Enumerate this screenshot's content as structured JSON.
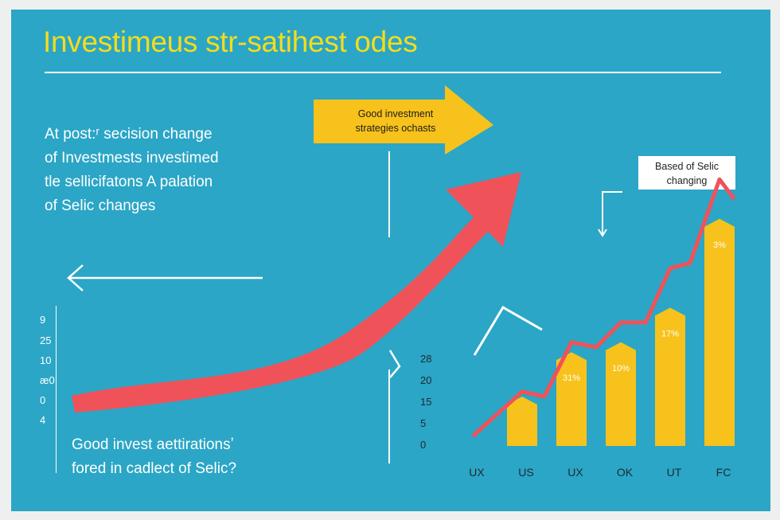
{
  "title": "Investimeus str-satihest odes",
  "intro_lines": [
    "At post:ʳ secision change",
    "of Investmests investimed",
    "tle sellicifatons A palation",
    "of Selic changes"
  ],
  "banner": {
    "line1": "Good investment",
    "line2": "strategies ochasts"
  },
  "callout": {
    "line1": "Based of Selic",
    "line2": "changing"
  },
  "left_axis_ticks": [
    "9",
    "25",
    "10",
    "æ0",
    "0",
    "4"
  ],
  "bottom_note": {
    "line1": "Good invest aettirationsʼ",
    "line2": "fored in cadlect of Selic?"
  },
  "colors": {
    "background": "#2ba6c6",
    "title": "#f4dc1c",
    "bar": "#f7c21b",
    "trend_line": "#f0525a",
    "big_arrow": "#f0525a",
    "banner_arrow": "#f7c21b"
  },
  "chart_data": {
    "type": "bar",
    "categories": [
      "UX",
      "US",
      "UX",
      "OK",
      "UT",
      "FC"
    ],
    "values": [
      null,
      10,
      19,
      21,
      28,
      46
    ],
    "data_labels": [
      "",
      "",
      "31%",
      "10%",
      "17%",
      "3%"
    ],
    "ytick_labels": [
      "28",
      "20",
      "15",
      "5",
      "0"
    ],
    "ytick_values": [
      28,
      20,
      15,
      5,
      0
    ],
    "ylim": [
      0,
      50
    ],
    "trend_line": [
      {
        "x": 0,
        "y": 2
      },
      {
        "x": 1,
        "y": 11
      },
      {
        "x": 1.45,
        "y": 10
      },
      {
        "x": 2,
        "y": 21
      },
      {
        "x": 2.5,
        "y": 20
      },
      {
        "x": 3,
        "y": 25
      },
      {
        "x": 3.5,
        "y": 25
      },
      {
        "x": 4,
        "y": 36
      },
      {
        "x": 4.4,
        "y": 37
      },
      {
        "x": 5,
        "y": 54
      },
      {
        "x": 5.3,
        "y": 50
      }
    ],
    "title": "",
    "xlabel": "",
    "ylabel": ""
  }
}
